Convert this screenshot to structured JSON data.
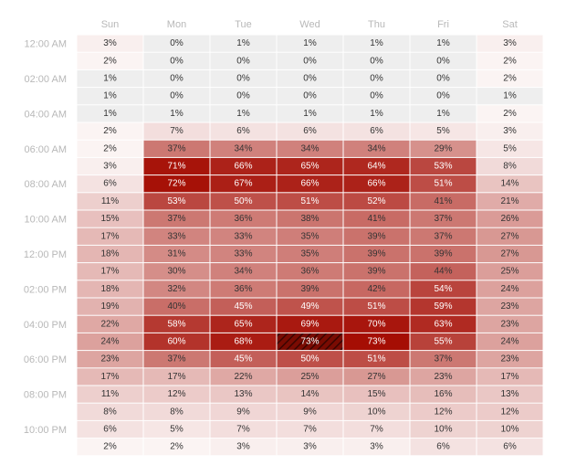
{
  "chart_data": {
    "type": "heatmap",
    "days": [
      "Sun",
      "Mon",
      "Tue",
      "Wed",
      "Thu",
      "Fri",
      "Sat"
    ],
    "hour_labels": [
      "12:00 AM",
      "",
      "02:00 AM",
      "",
      "04:00 AM",
      "",
      "06:00 AM",
      "",
      "08:00 AM",
      "",
      "10:00 AM",
      "",
      "12:00 PM",
      "",
      "02:00 PM",
      "",
      "04:00 PM",
      "",
      "06:00 PM",
      "",
      "08:00 PM",
      "",
      "10:00 PM",
      ""
    ],
    "unit": "%",
    "values": [
      [
        3,
        0,
        1,
        1,
        1,
        1,
        3
      ],
      [
        2,
        0,
        0,
        0,
        0,
        0,
        2
      ],
      [
        1,
        0,
        0,
        0,
        0,
        0,
        2
      ],
      [
        1,
        0,
        0,
        0,
        0,
        0,
        1
      ],
      [
        1,
        1,
        1,
        1,
        1,
        1,
        2
      ],
      [
        2,
        7,
        6,
        6,
        6,
        5,
        3
      ],
      [
        2,
        37,
        34,
        34,
        34,
        29,
        5
      ],
      [
        3,
        71,
        66,
        65,
        64,
        53,
        8
      ],
      [
        6,
        72,
        67,
        66,
        66,
        51,
        14
      ],
      [
        11,
        53,
        50,
        51,
        52,
        41,
        21
      ],
      [
        15,
        37,
        36,
        38,
        41,
        37,
        26
      ],
      [
        17,
        33,
        33,
        35,
        39,
        37,
        27
      ],
      [
        18,
        31,
        33,
        35,
        39,
        39,
        27
      ],
      [
        17,
        30,
        34,
        36,
        39,
        44,
        25
      ],
      [
        18,
        32,
        36,
        39,
        42,
        54,
        24
      ],
      [
        19,
        40,
        45,
        49,
        51,
        59,
        23
      ],
      [
        22,
        58,
        65,
        69,
        70,
        63,
        23
      ],
      [
        24,
        60,
        68,
        73,
        73,
        55,
        24
      ],
      [
        23,
        37,
        45,
        50,
        51,
        37,
        23
      ],
      [
        17,
        17,
        22,
        25,
        27,
        23,
        17
      ],
      [
        11,
        12,
        13,
        14,
        15,
        16,
        13
      ],
      [
        8,
        8,
        9,
        9,
        10,
        12,
        12
      ],
      [
        6,
        5,
        7,
        7,
        7,
        10,
        10
      ],
      [
        2,
        2,
        3,
        3,
        3,
        6,
        6
      ]
    ],
    "highlighted_cell": {
      "row": 17,
      "col": 3
    },
    "colors": {
      "low": "#ffffff",
      "high": "#a50e04",
      "zero": "#eeeeee",
      "text_light": "#ffffff",
      "text_dark": "#333333"
    }
  }
}
